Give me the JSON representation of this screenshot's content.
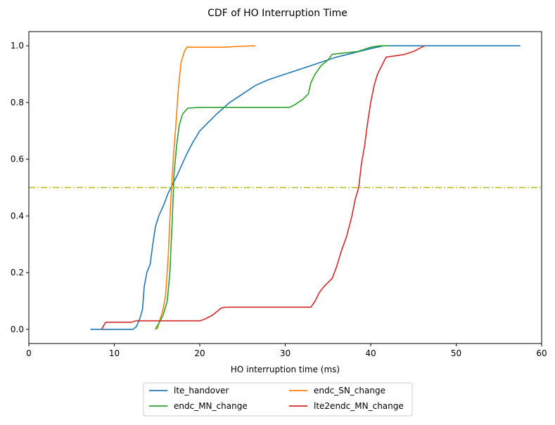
{
  "chart_data": {
    "type": "line",
    "title": "CDF of HO Interruption Time",
    "xlabel": "HO interruption time (ms)",
    "ylabel": "",
    "xlim": [
      0,
      60
    ],
    "ylim": [
      -0.05,
      1.05
    ],
    "xticks": [
      0,
      10,
      20,
      30,
      40,
      50,
      60
    ],
    "yticks": [
      0.0,
      0.2,
      0.4,
      0.6,
      0.8,
      1.0
    ],
    "xtick_labels": [
      "0",
      "10",
      "20",
      "30",
      "40",
      "50",
      "60"
    ],
    "ytick_labels": [
      "0.0",
      "0.2",
      "0.4",
      "0.6",
      "0.8",
      "1.0"
    ],
    "grid": false,
    "legend_position": "bottom-center-outside",
    "reference_line": {
      "y": 0.5,
      "color": "#bcbd22",
      "style": "dashdot"
    },
    "series": [
      {
        "name": "lte_handover",
        "color": "#1f77b4",
        "points": [
          [
            7.2,
            0.0
          ],
          [
            12.2,
            0.0
          ],
          [
            12.6,
            0.01
          ],
          [
            13.0,
            0.04
          ],
          [
            13.3,
            0.07
          ],
          [
            13.5,
            0.15
          ],
          [
            13.8,
            0.2
          ],
          [
            14.2,
            0.23
          ],
          [
            14.5,
            0.3
          ],
          [
            14.8,
            0.36
          ],
          [
            15.2,
            0.4
          ],
          [
            15.8,
            0.44
          ],
          [
            16.3,
            0.48
          ],
          [
            16.8,
            0.51
          ],
          [
            17.3,
            0.54
          ],
          [
            17.9,
            0.58
          ],
          [
            18.5,
            0.62
          ],
          [
            19.2,
            0.66
          ],
          [
            20.0,
            0.7
          ],
          [
            21.0,
            0.73
          ],
          [
            22.0,
            0.76
          ],
          [
            23.5,
            0.8
          ],
          [
            25.0,
            0.83
          ],
          [
            26.5,
            0.86
          ],
          [
            28.0,
            0.88
          ],
          [
            30.0,
            0.9
          ],
          [
            32.0,
            0.92
          ],
          [
            34.0,
            0.94
          ],
          [
            36.0,
            0.96
          ],
          [
            38.0,
            0.975
          ],
          [
            40.0,
            0.99
          ],
          [
            41.5,
            1.0
          ],
          [
            57.5,
            1.0
          ]
        ]
      },
      {
        "name": "endc_SN_change",
        "color": "#ff7f0e",
        "points": [
          [
            15.0,
            0.0
          ],
          [
            15.3,
            0.03
          ],
          [
            15.7,
            0.07
          ],
          [
            16.0,
            0.12
          ],
          [
            16.3,
            0.25
          ],
          [
            16.6,
            0.45
          ],
          [
            16.9,
            0.6
          ],
          [
            17.2,
            0.72
          ],
          [
            17.5,
            0.85
          ],
          [
            17.8,
            0.94
          ],
          [
            18.2,
            0.98
          ],
          [
            18.5,
            0.995
          ],
          [
            21.0,
            0.995
          ],
          [
            23.0,
            0.995
          ],
          [
            24.5,
            0.998
          ],
          [
            26.5,
            1.0
          ]
        ]
      },
      {
        "name": "endc_MN_change",
        "color": "#2ca02c",
        "points": [
          [
            14.8,
            0.0
          ],
          [
            15.2,
            0.02
          ],
          [
            15.7,
            0.05
          ],
          [
            16.2,
            0.1
          ],
          [
            16.5,
            0.2
          ],
          [
            16.8,
            0.4
          ],
          [
            17.0,
            0.55
          ],
          [
            17.3,
            0.65
          ],
          [
            17.6,
            0.72
          ],
          [
            18.0,
            0.76
          ],
          [
            18.6,
            0.78
          ],
          [
            20.0,
            0.783
          ],
          [
            25.0,
            0.783
          ],
          [
            30.5,
            0.783
          ],
          [
            31.0,
            0.79
          ],
          [
            32.0,
            0.81
          ],
          [
            32.7,
            0.83
          ],
          [
            33.0,
            0.87
          ],
          [
            33.5,
            0.9
          ],
          [
            34.2,
            0.93
          ],
          [
            35.0,
            0.95
          ],
          [
            35.5,
            0.97
          ],
          [
            37.0,
            0.975
          ],
          [
            38.5,
            0.98
          ],
          [
            40.0,
            0.995
          ],
          [
            41.0,
            1.0
          ],
          [
            42.2,
            1.0
          ]
        ]
      },
      {
        "name": "lte2endc_MN_change",
        "color": "#d62728",
        "points": [
          [
            8.5,
            0.0
          ],
          [
            8.7,
            0.01
          ],
          [
            9.0,
            0.025
          ],
          [
            12.0,
            0.025
          ],
          [
            12.5,
            0.03
          ],
          [
            20.0,
            0.03
          ],
          [
            20.5,
            0.035
          ],
          [
            21.5,
            0.05
          ],
          [
            22.5,
            0.075
          ],
          [
            23.0,
            0.078
          ],
          [
            33.0,
            0.078
          ],
          [
            33.5,
            0.1
          ],
          [
            34.0,
            0.13
          ],
          [
            34.5,
            0.15
          ],
          [
            35.5,
            0.18
          ],
          [
            36.0,
            0.22
          ],
          [
            36.5,
            0.27
          ],
          [
            37.2,
            0.33
          ],
          [
            37.8,
            0.4
          ],
          [
            38.2,
            0.46
          ],
          [
            38.6,
            0.5
          ],
          [
            38.9,
            0.58
          ],
          [
            39.3,
            0.65
          ],
          [
            39.6,
            0.72
          ],
          [
            40.0,
            0.8
          ],
          [
            40.4,
            0.86
          ],
          [
            40.8,
            0.9
          ],
          [
            41.3,
            0.93
          ],
          [
            41.8,
            0.96
          ],
          [
            43.0,
            0.965
          ],
          [
            44.0,
            0.97
          ],
          [
            45.0,
            0.98
          ],
          [
            46.3,
            1.0
          ]
        ]
      }
    ]
  }
}
